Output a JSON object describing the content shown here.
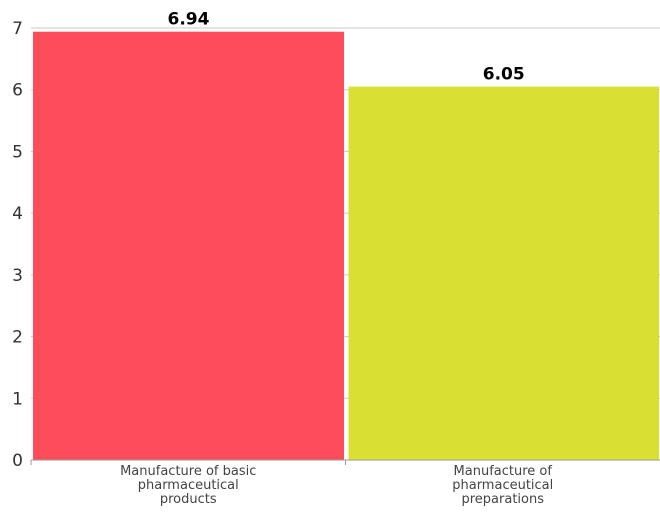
{
  "chart_data": {
    "type": "bar",
    "categories": [
      [
        "Manufacture of basic",
        "pharmaceutical",
        "products"
      ],
      [
        "Manufacture of",
        "pharmaceutical",
        "preparations"
      ]
    ],
    "values": [
      6.94,
      6.05
    ],
    "value_labels": [
      "6.94",
      "6.05"
    ],
    "colors": [
      "#fd4d5a",
      "#d9e033"
    ],
    "ylim": [
      0,
      7
    ],
    "yticks": [
      0,
      1,
      2,
      3,
      4,
      5,
      6,
      7
    ],
    "grid": true
  }
}
